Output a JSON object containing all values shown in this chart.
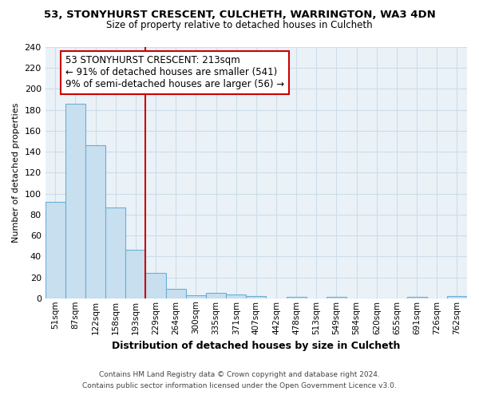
{
  "title": "53, STONYHURST CRESCENT, CULCHETH, WARRINGTON, WA3 4DN",
  "subtitle": "Size of property relative to detached houses in Culcheth",
  "xlabel": "Distribution of detached houses by size in Culcheth",
  "ylabel": "Number of detached properties",
  "bar_labels": [
    "51sqm",
    "87sqm",
    "122sqm",
    "158sqm",
    "193sqm",
    "229sqm",
    "264sqm",
    "300sqm",
    "335sqm",
    "371sqm",
    "407sqm",
    "442sqm",
    "478sqm",
    "513sqm",
    "549sqm",
    "584sqm",
    "620sqm",
    "655sqm",
    "691sqm",
    "726sqm",
    "762sqm"
  ],
  "bar_heights": [
    92,
    186,
    146,
    87,
    46,
    24,
    9,
    3,
    5,
    4,
    2,
    0,
    1,
    0,
    1,
    0,
    0,
    0,
    1,
    0,
    2
  ],
  "bar_color": "#c8dff0",
  "bar_edgecolor": "#6aaed6",
  "vline_x_index": 4.5,
  "vline_color": "#cc0000",
  "annotation_title": "53 STONYHURST CRESCENT: 213sqm",
  "annotation_line1": "← 91% of detached houses are smaller (541)",
  "annotation_line2": "9% of semi-detached houses are larger (56) →",
  "annotation_box_facecolor": "#ffffff",
  "annotation_box_edgecolor": "#cc0000",
  "ylim": [
    0,
    240
  ],
  "yticks": [
    0,
    20,
    40,
    60,
    80,
    100,
    120,
    140,
    160,
    180,
    200,
    220,
    240
  ],
  "footer_line1": "Contains HM Land Registry data © Crown copyright and database right 2024.",
  "footer_line2": "Contains public sector information licensed under the Open Government Licence v3.0.",
  "background_color": "#ffffff",
  "grid_color": "#cddde8",
  "plot_bg_color": "#eaf2f8"
}
